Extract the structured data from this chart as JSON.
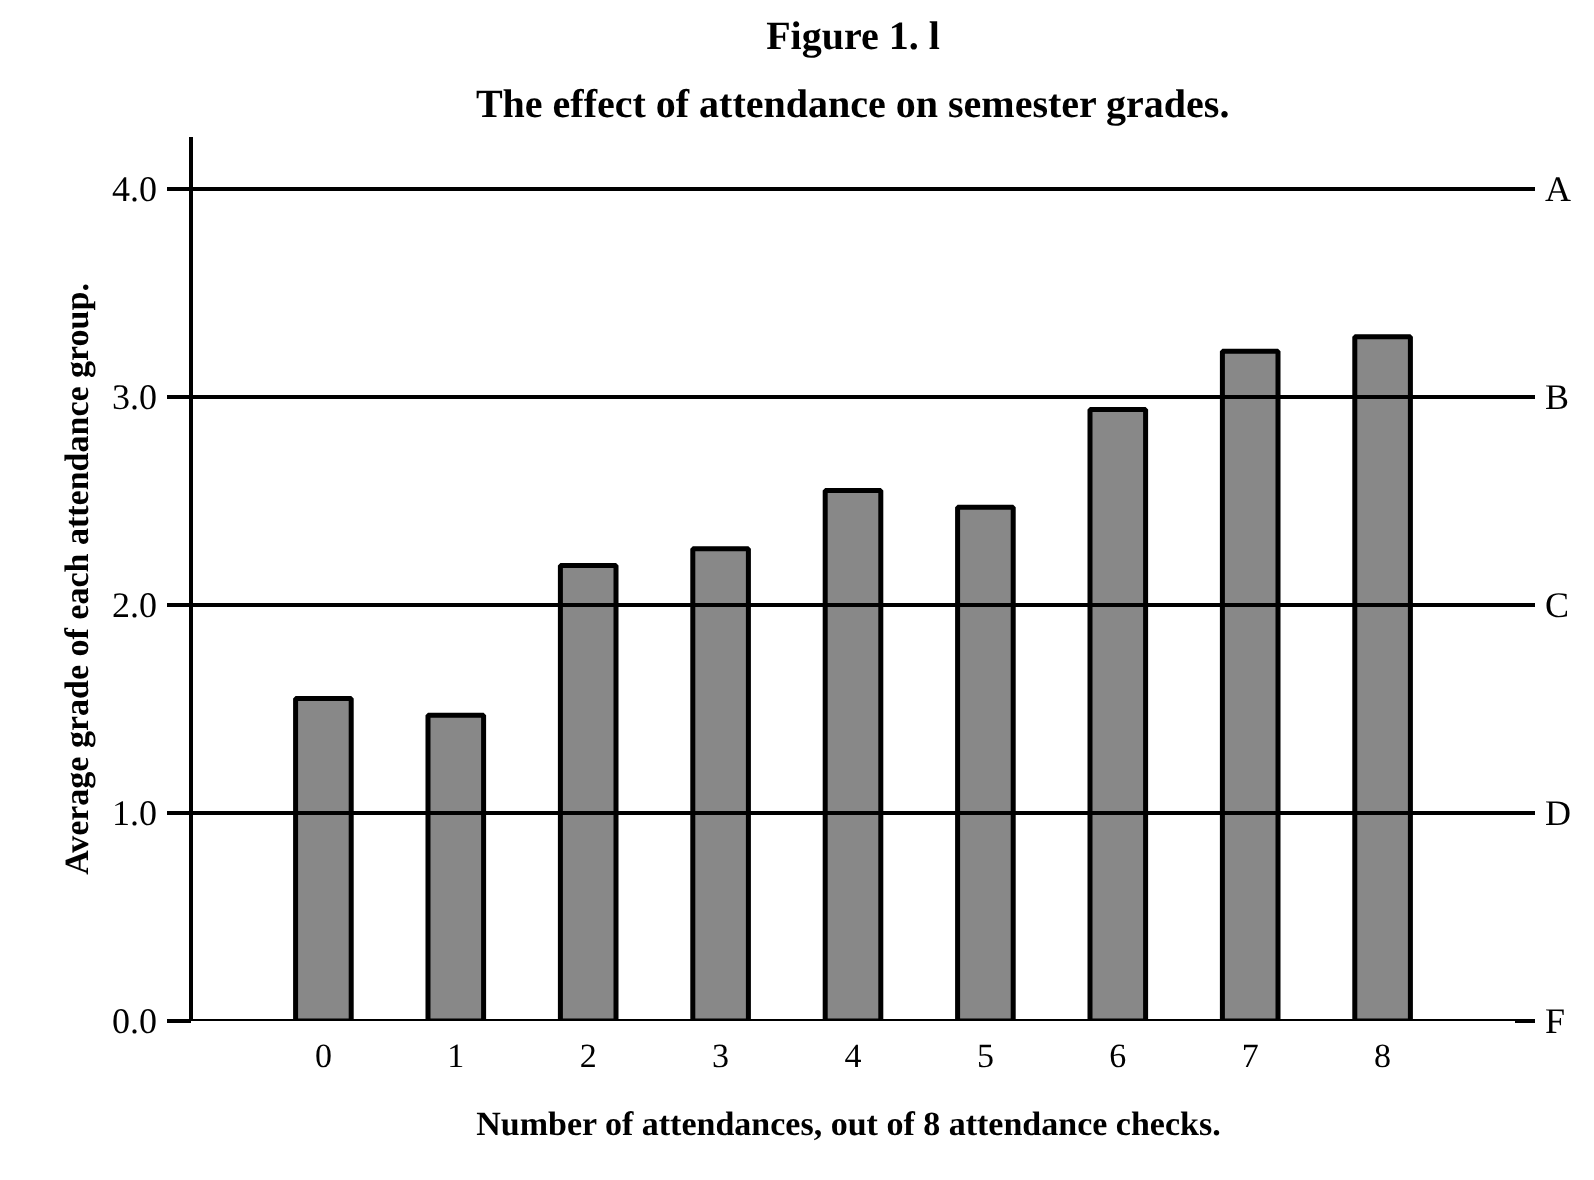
{
  "chart_data": {
    "type": "bar",
    "title": "Figure 1. l",
    "subtitle": "The effect of attendance on semester grades.",
    "xlabel": "Number of attendances, out of 8  attendance checks.",
    "ylabel": "Average grade of each attendance group.",
    "categories": [
      "0",
      "1",
      "2",
      "3",
      "4",
      "5",
      "6",
      "7",
      "8"
    ],
    "values": [
      1.55,
      1.47,
      2.19,
      2.27,
      2.55,
      2.47,
      2.94,
      3.22,
      3.29
    ],
    "color": "#888888",
    "ylim": [
      0,
      4.25
    ],
    "yticks": [
      {
        "value": 0,
        "label": "0.0"
      },
      {
        "value": 1,
        "label": "1.0"
      },
      {
        "value": 2,
        "label": "2.0"
      },
      {
        "value": 3,
        "label": "3.0"
      },
      {
        "value": 4,
        "label": "4.0"
      }
    ],
    "ref_lines": [
      {
        "axis": "y",
        "value": 4,
        "label": "A"
      },
      {
        "axis": "y",
        "value": 3,
        "label": "B"
      },
      {
        "axis": "y",
        "value": 2,
        "label": "C"
      },
      {
        "axis": "y",
        "value": 1,
        "label": "D"
      },
      {
        "axis": "y",
        "value": 0,
        "label": "F"
      }
    ]
  }
}
